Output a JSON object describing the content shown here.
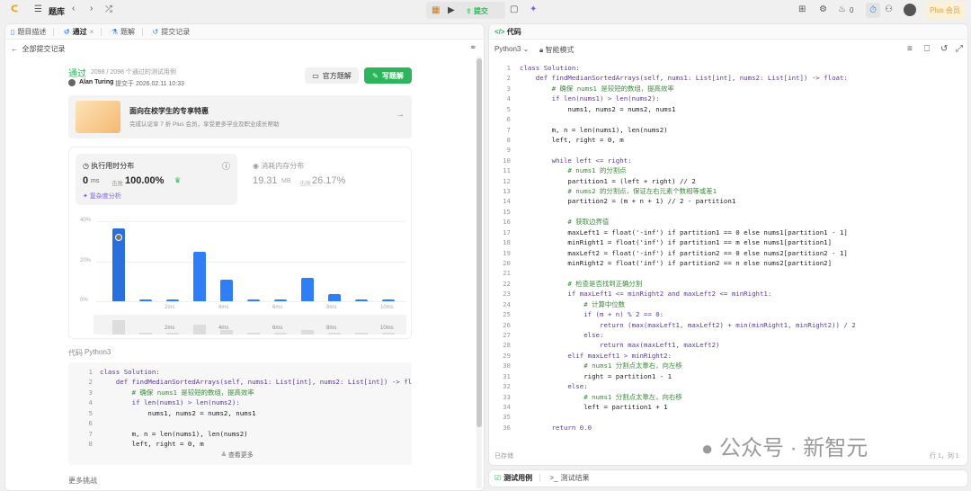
{
  "topbar": {
    "problem_bank": "题库",
    "submit": "提交",
    "fire_count": "0",
    "plus": "Plus 会员"
  },
  "left": {
    "tabs": [
      {
        "label": "题目描述"
      },
      {
        "label": "通过"
      },
      {
        "label": "题解"
      },
      {
        "label": "提交记录"
      }
    ],
    "back": "全部提交记录",
    "status": "通过",
    "cases": "2098 / 2098 个通过的测试用例",
    "user": "Alan Turing",
    "submitted_at": "提交于 2026.02.11 10:33",
    "official_solution": "官方题解",
    "write_solution": "写题解",
    "promo_title": "面向在校学生的专享特惠",
    "promo_sub": "完成认证享 7 折 Plus 会员，享受更多学业及职业成长帮助",
    "runtime_title": "执行用时分布",
    "runtime_value": "0",
    "runtime_unit": "ms",
    "beats_label": "击败",
    "runtime_beats": "100.00%",
    "complexity": "复杂度分析",
    "memory_title": "消耗内存分布",
    "memory_value": "19.31",
    "memory_unit": "MB",
    "memory_beats": "26.17%",
    "code_label": "代码",
    "code_lang": "Python3",
    "view_more": "查看更多",
    "more_challenges": "更多挑战"
  },
  "chart_data": {
    "type": "bar",
    "categories": [
      "0ms",
      "1ms",
      "2ms",
      "3ms",
      "4ms",
      "5ms",
      "6ms",
      "7ms",
      "8ms",
      "9ms",
      "10ms"
    ],
    "values": [
      36.5,
      1,
      1,
      24.5,
      11,
      1,
      1,
      11.5,
      3.5,
      1,
      1
    ],
    "x_tick_labels": [
      "2ms",
      "4ms",
      "6ms",
      "8ms",
      "10ms"
    ],
    "y_tick_labels": [
      "40%",
      "20%",
      "0%"
    ],
    "ylim": [
      0,
      40
    ],
    "grid": true,
    "highlighted_category": "0ms",
    "color": "#2f7ef5"
  },
  "right": {
    "title": "代码",
    "lang": "Python3",
    "mode": "智能模式",
    "saved": "已存储",
    "cursor": "行 1，列 1",
    "bottom_tabs": [
      {
        "label": "测试用例"
      },
      {
        "label": "测试结果"
      }
    ]
  },
  "code": [
    "class Solution:",
    "    def findMedianSortedArrays(self, nums1: List[int], nums2: List[int]) -> float:",
    "        # 确保 nums1 是较短的数组，提高效率",
    "        if len(nums1) > len(nums2):",
    "            nums1, nums2 = nums2, nums1",
    "",
    "        m, n = len(nums1), len(nums2)",
    "        left, right = 0, m",
    "",
    "        while left <= right:",
    "            # nums1 的分割点",
    "            partition1 = (left + right) // 2",
    "            # nums2 的分割点，保证左右元素个数相等或差1",
    "            partition2 = (m + n + 1) // 2 - partition1",
    "",
    "            # 获取边界值",
    "            maxLeft1 = float('-inf') if partition1 == 0 else nums1[partition1 - 1]",
    "            minRight1 = float('inf') if partition1 == m else nums1[partition1]",
    "            maxLeft2 = float('-inf') if partition2 == 0 else nums2[partition2 - 1]",
    "            minRight2 = float('inf') if partition2 == n else nums2[partition2]",
    "",
    "            # 检查是否找到正确分割",
    "            if maxLeft1 <= minRight2 and maxLeft2 <= minRight1:",
    "                # 计算中位数",
    "                if (m + n) % 2 == 0:",
    "                    return (max(maxLeft1, maxLeft2) + min(minRight1, minRight2)) / 2",
    "                else:",
    "                    return max(maxLeft1, maxLeft2)",
    "            elif maxLeft1 > minRight2:",
    "                # nums1 分割点太靠右，向左移",
    "                right = partition1 - 1",
    "            else:",
    "                # nums1 分割点太靠左，向右移",
    "                left = partition1 + 1",
    "",
    "        return 0.0"
  ],
  "preview_lines": 8,
  "watermark": "公众号 · 新智元"
}
